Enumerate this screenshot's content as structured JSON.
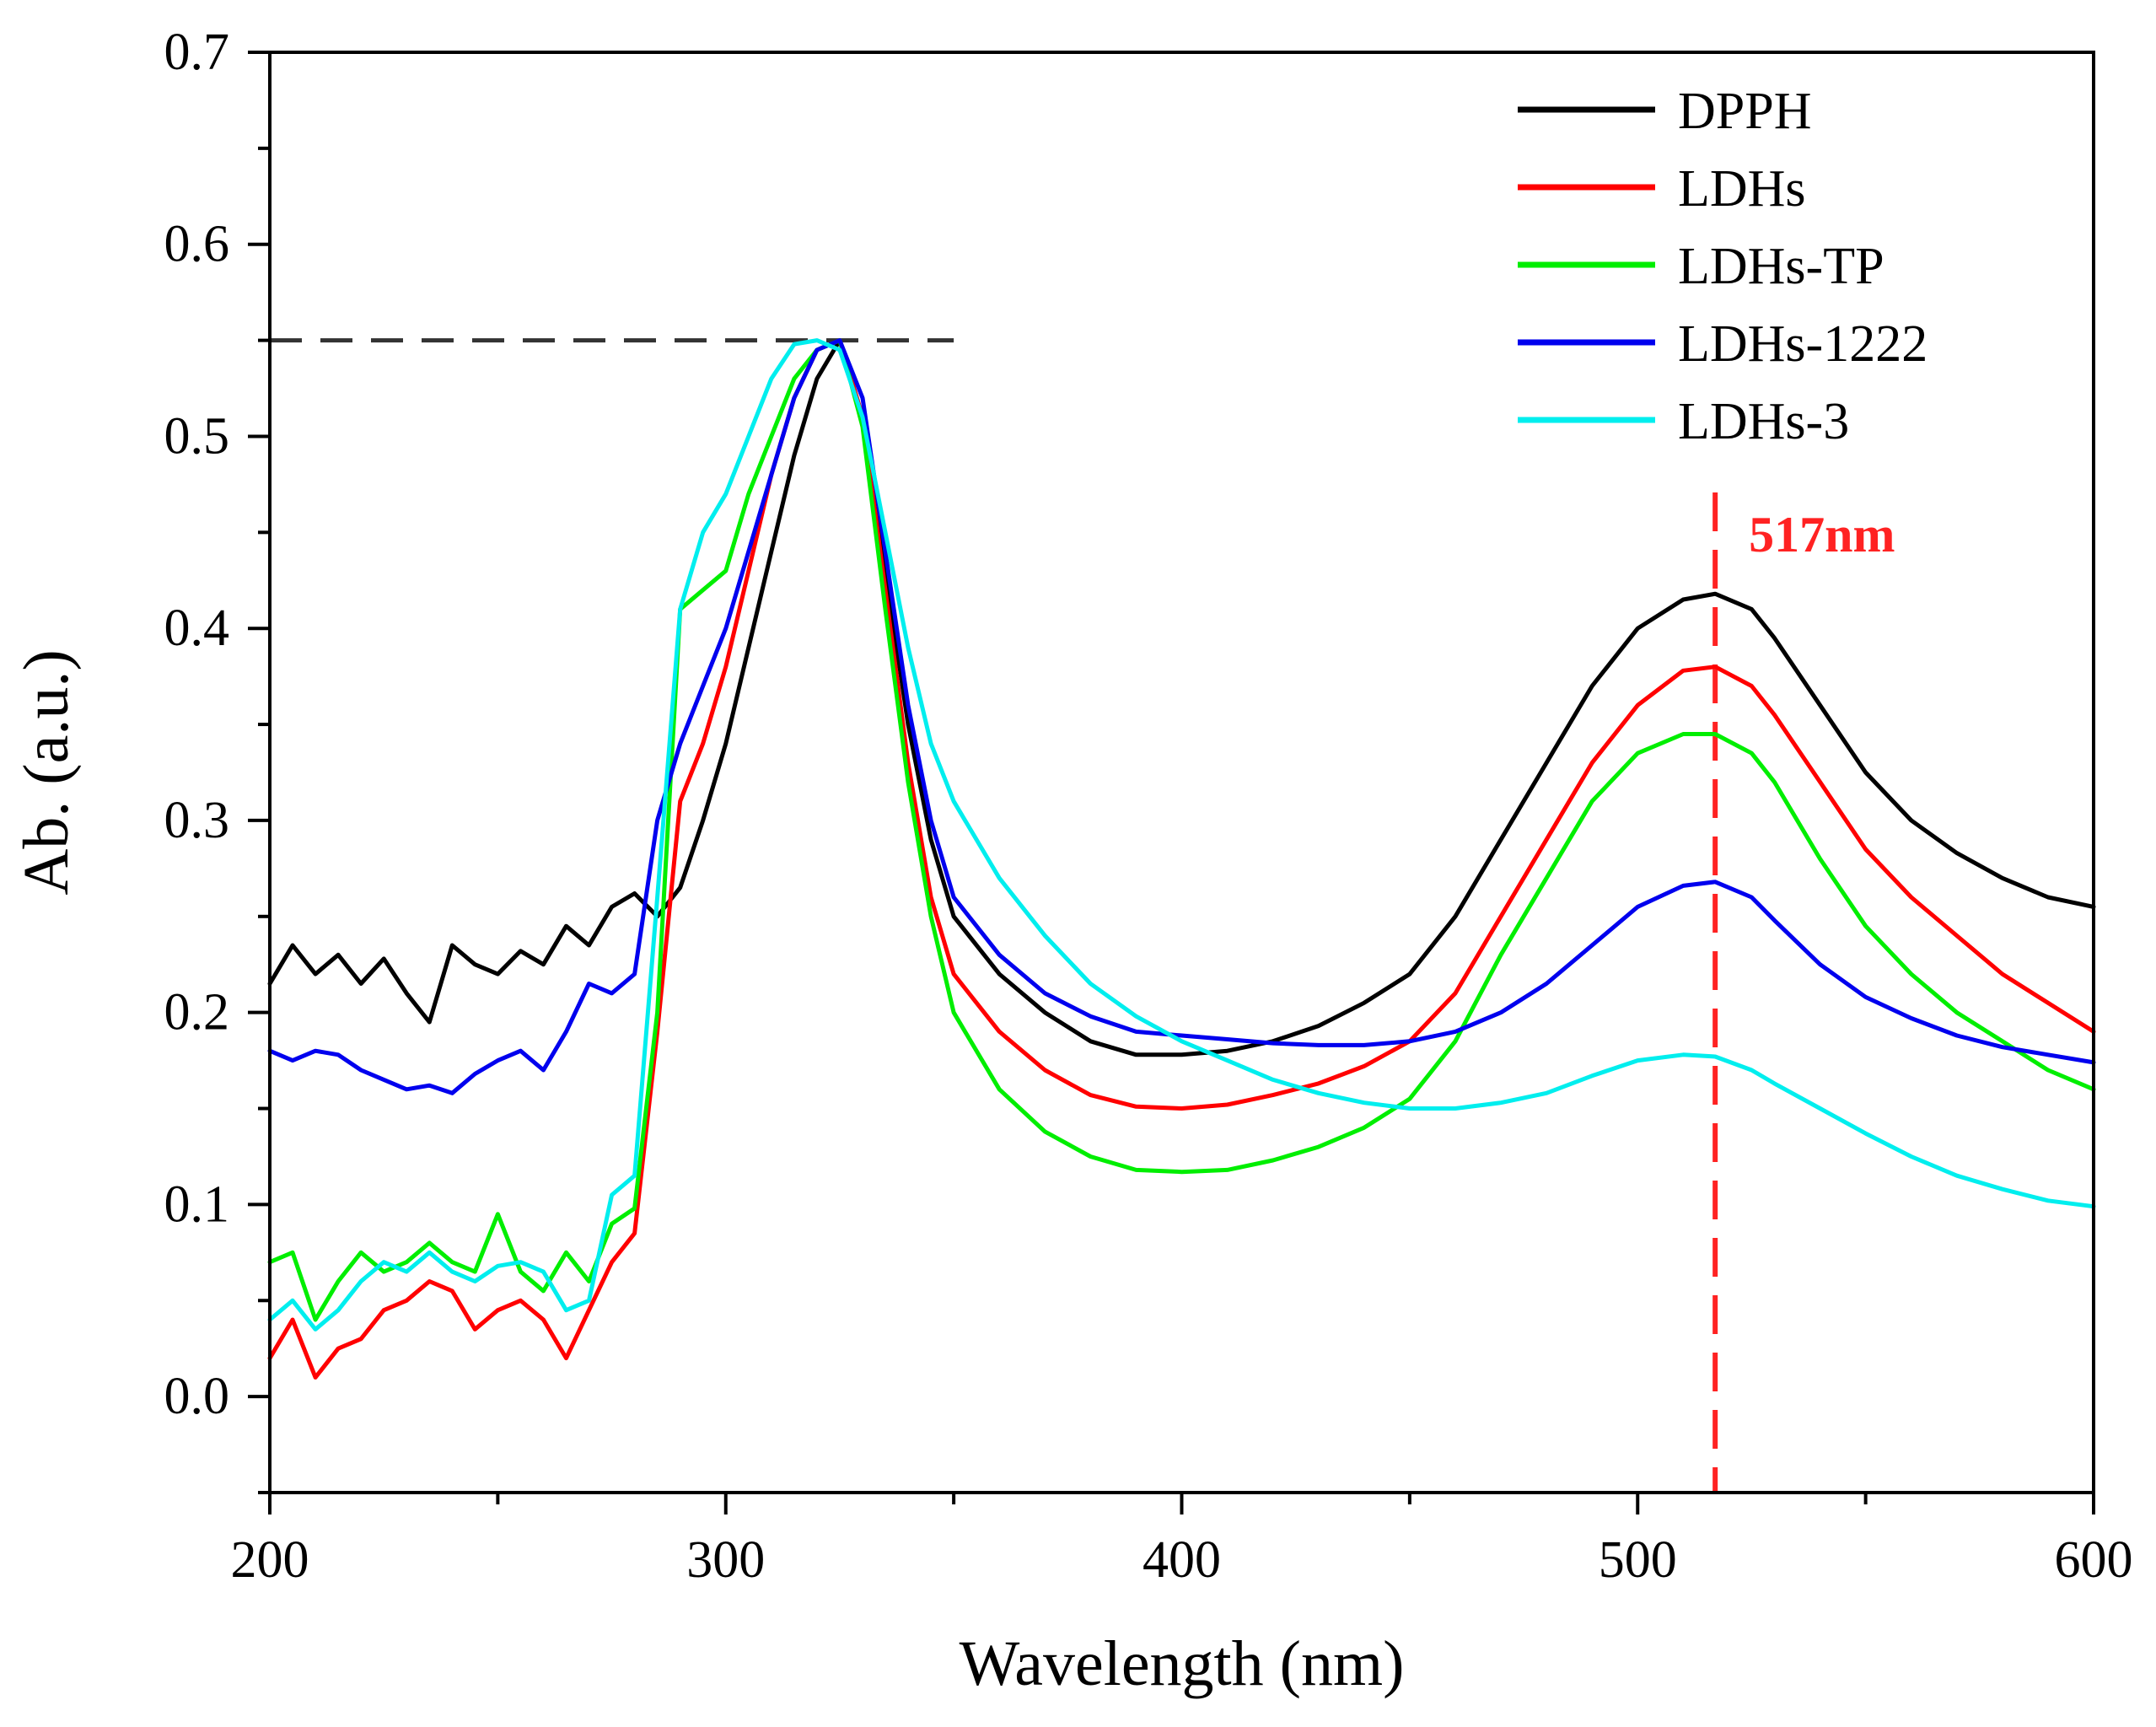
{
  "chart_data": {
    "type": "line",
    "title": "",
    "xlabel": "Wavelength (nm)",
    "ylabel": "Ab. (a.u.)",
    "xlim": [
      200,
      600
    ],
    "ylim": [
      -0.05,
      0.7
    ],
    "xticks": [
      200,
      300,
      400,
      500,
      600
    ],
    "xtick_labels": [
      "200",
      "300",
      "400",
      "500",
      "600"
    ],
    "yticks": [
      0.0,
      0.1,
      0.2,
      0.3,
      0.4,
      0.5,
      0.6,
      0.7
    ],
    "ytick_labels": [
      "0.0",
      "0.1",
      "0.2",
      "0.3",
      "0.4",
      "0.5",
      "0.6",
      "0.7"
    ],
    "grid": false,
    "legend_position": "top-right",
    "series": [
      {
        "name": "DPPH",
        "color": "#000000",
        "x": [
          200,
          205,
          210,
          215,
          220,
          225,
          230,
          235,
          240,
          245,
          250,
          255,
          260,
          265,
          270,
          275,
          280,
          285,
          290,
          295,
          300,
          305,
          310,
          315,
          320,
          325,
          330,
          335,
          340,
          345,
          350,
          360,
          370,
          380,
          390,
          400,
          410,
          420,
          430,
          440,
          450,
          460,
          470,
          480,
          490,
          500,
          510,
          517,
          525,
          530,
          540,
          550,
          560,
          570,
          580,
          590,
          600
        ],
        "y": [
          0.215,
          0.235,
          0.22,
          0.23,
          0.215,
          0.228,
          0.21,
          0.195,
          0.235,
          0.225,
          0.22,
          0.232,
          0.225,
          0.245,
          0.235,
          0.255,
          0.262,
          0.25,
          0.265,
          0.3,
          0.34,
          0.39,
          0.44,
          0.49,
          0.53,
          0.55,
          0.51,
          0.43,
          0.35,
          0.29,
          0.25,
          0.22,
          0.2,
          0.185,
          0.178,
          0.178,
          0.18,
          0.185,
          0.193,
          0.205,
          0.22,
          0.25,
          0.29,
          0.33,
          0.37,
          0.4,
          0.415,
          0.418,
          0.41,
          0.395,
          0.36,
          0.325,
          0.3,
          0.283,
          0.27,
          0.26,
          0.255
        ]
      },
      {
        "name": "LDHs",
        "color": "#ff0000",
        "x": [
          200,
          205,
          210,
          215,
          220,
          225,
          230,
          235,
          240,
          245,
          250,
          255,
          260,
          265,
          270,
          275,
          280,
          285,
          290,
          295,
          300,
          305,
          310,
          315,
          320,
          325,
          330,
          335,
          340,
          345,
          350,
          360,
          370,
          380,
          390,
          400,
          410,
          420,
          430,
          440,
          450,
          460,
          470,
          480,
          490,
          500,
          510,
          517,
          525,
          530,
          540,
          550,
          560,
          570,
          580,
          590,
          600
        ],
        "y": [
          0.02,
          0.04,
          0.01,
          0.025,
          0.03,
          0.045,
          0.05,
          0.06,
          0.055,
          0.035,
          0.045,
          0.05,
          0.04,
          0.02,
          0.045,
          0.07,
          0.085,
          0.19,
          0.31,
          0.34,
          0.38,
          0.43,
          0.48,
          0.52,
          0.545,
          0.55,
          0.51,
          0.42,
          0.33,
          0.26,
          0.22,
          0.19,
          0.17,
          0.157,
          0.151,
          0.15,
          0.152,
          0.157,
          0.163,
          0.172,
          0.185,
          0.21,
          0.25,
          0.29,
          0.33,
          0.36,
          0.378,
          0.38,
          0.37,
          0.355,
          0.32,
          0.285,
          0.26,
          0.24,
          0.22,
          0.205,
          0.19
        ]
      },
      {
        "name": "LDHs-TP",
        "color": "#00ee00",
        "x": [
          200,
          205,
          210,
          215,
          220,
          225,
          230,
          235,
          240,
          245,
          250,
          255,
          260,
          265,
          270,
          275,
          280,
          285,
          290,
          295,
          300,
          305,
          310,
          315,
          320,
          325,
          330,
          335,
          340,
          345,
          350,
          360,
          370,
          380,
          390,
          400,
          410,
          420,
          430,
          440,
          450,
          460,
          470,
          480,
          490,
          500,
          510,
          517,
          525,
          530,
          540,
          550,
          560,
          570,
          580,
          590,
          600
        ],
        "y": [
          0.07,
          0.075,
          0.04,
          0.06,
          0.075,
          0.065,
          0.07,
          0.08,
          0.07,
          0.065,
          0.095,
          0.065,
          0.055,
          0.075,
          0.06,
          0.09,
          0.098,
          0.2,
          0.41,
          0.42,
          0.43,
          0.47,
          0.5,
          0.53,
          0.545,
          0.55,
          0.505,
          0.41,
          0.32,
          0.25,
          0.2,
          0.16,
          0.138,
          0.125,
          0.118,
          0.117,
          0.118,
          0.123,
          0.13,
          0.14,
          0.155,
          0.185,
          0.23,
          0.27,
          0.31,
          0.335,
          0.345,
          0.345,
          0.335,
          0.32,
          0.28,
          0.245,
          0.22,
          0.2,
          0.185,
          0.17,
          0.16
        ]
      },
      {
        "name": "LDHs-1222",
        "color": "#0000ee",
        "x": [
          200,
          205,
          210,
          215,
          220,
          225,
          230,
          235,
          240,
          245,
          250,
          255,
          260,
          265,
          270,
          275,
          280,
          285,
          290,
          295,
          300,
          305,
          310,
          315,
          320,
          325,
          330,
          335,
          340,
          345,
          350,
          360,
          370,
          380,
          390,
          400,
          410,
          420,
          430,
          440,
          450,
          460,
          470,
          480,
          490,
          500,
          510,
          517,
          525,
          530,
          540,
          550,
          560,
          570,
          580,
          590,
          600
        ],
        "y": [
          0.18,
          0.175,
          0.18,
          0.178,
          0.17,
          0.165,
          0.16,
          0.162,
          0.158,
          0.168,
          0.175,
          0.18,
          0.17,
          0.19,
          0.215,
          0.21,
          0.22,
          0.3,
          0.34,
          0.37,
          0.4,
          0.44,
          0.48,
          0.52,
          0.545,
          0.55,
          0.52,
          0.44,
          0.36,
          0.3,
          0.26,
          0.23,
          0.21,
          0.198,
          0.19,
          0.188,
          0.186,
          0.184,
          0.183,
          0.183,
          0.185,
          0.19,
          0.2,
          0.215,
          0.235,
          0.255,
          0.266,
          0.268,
          0.26,
          0.248,
          0.225,
          0.208,
          0.197,
          0.188,
          0.182,
          0.178,
          0.174
        ]
      },
      {
        "name": "LDHs-3",
        "color": "#00eeee",
        "x": [
          200,
          205,
          210,
          215,
          220,
          225,
          230,
          235,
          240,
          245,
          250,
          255,
          260,
          265,
          270,
          275,
          280,
          285,
          290,
          295,
          300,
          305,
          310,
          315,
          320,
          325,
          330,
          335,
          340,
          345,
          350,
          360,
          370,
          380,
          390,
          400,
          410,
          420,
          430,
          440,
          450,
          460,
          470,
          480,
          490,
          500,
          510,
          517,
          525,
          530,
          540,
          550,
          560,
          570,
          580,
          590,
          600
        ],
        "y": [
          0.04,
          0.05,
          0.035,
          0.045,
          0.06,
          0.07,
          0.065,
          0.075,
          0.065,
          0.06,
          0.068,
          0.07,
          0.065,
          0.045,
          0.05,
          0.105,
          0.115,
          0.26,
          0.41,
          0.45,
          0.47,
          0.5,
          0.53,
          0.548,
          0.55,
          0.545,
          0.51,
          0.45,
          0.39,
          0.34,
          0.31,
          0.27,
          0.24,
          0.215,
          0.198,
          0.185,
          0.175,
          0.165,
          0.158,
          0.153,
          0.15,
          0.15,
          0.153,
          0.158,
          0.167,
          0.175,
          0.178,
          0.177,
          0.17,
          0.163,
          0.15,
          0.137,
          0.125,
          0.115,
          0.108,
          0.102,
          0.099
        ]
      }
    ],
    "annotations": [
      {
        "type": "hline",
        "y": 0.55,
        "x_range": [
          200,
          350
        ],
        "color": "#333333",
        "style": "dashed"
      },
      {
        "type": "vline",
        "x": 517,
        "color": "#ff2222",
        "style": "dashed",
        "label": "517nm",
        "label_color": "#ff2222"
      }
    ]
  }
}
